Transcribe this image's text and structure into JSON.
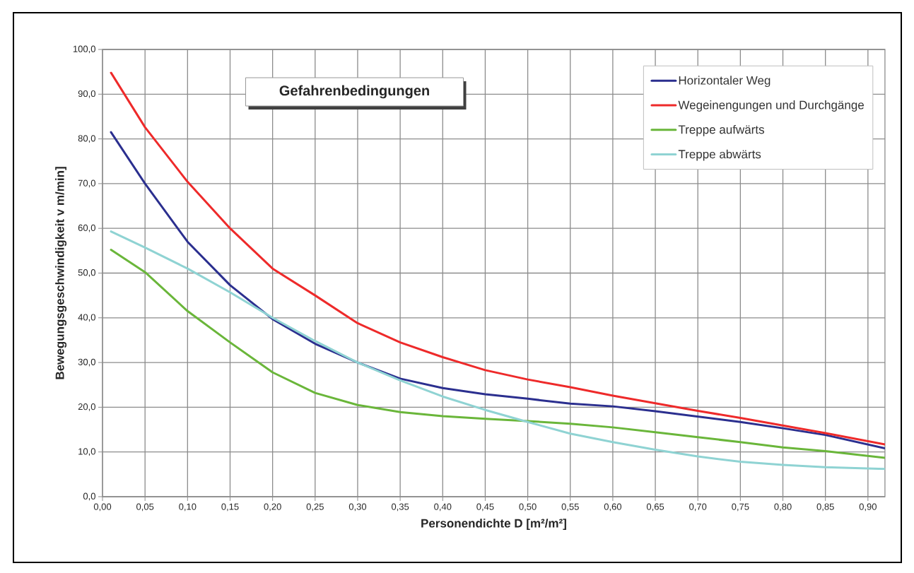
{
  "chart_data": {
    "type": "line",
    "title": "Gefahrenbedingungen",
    "xlabel": "Personendichte D [m²/m²]",
    "ylabel": "Bewegungsgeschwindigkeit v m/min]",
    "x": [
      0.01,
      0.05,
      0.1,
      0.15,
      0.2,
      0.25,
      0.3,
      0.35,
      0.4,
      0.45,
      0.5,
      0.55,
      0.6,
      0.65,
      0.7,
      0.75,
      0.8,
      0.85,
      0.92
    ],
    "series": [
      {
        "name": "Horizontaler Weg",
        "color": "#2b2f8f",
        "values": [
          81.5,
          70,
          57,
          47.3,
          39.7,
          34.2,
          30,
          26.4,
          24.3,
          22.9,
          21.9,
          20.8,
          20.2,
          19.1,
          17.9,
          16.7,
          15.3,
          13.8,
          10.8
        ]
      },
      {
        "name": "Wegeinengungen und Durchgänge",
        "color": "#ee2a2a",
        "values": [
          94.8,
          82.6,
          70.4,
          60,
          51,
          45,
          38.8,
          34.5,
          31.2,
          28.3,
          26.2,
          24.5,
          22.6,
          20.9,
          19.2,
          17.6,
          15.9,
          14.2,
          11.7
        ]
      },
      {
        "name": "Treppe aufwärts",
        "color": "#6ab63a",
        "values": [
          55.2,
          50.2,
          41.5,
          34.5,
          27.8,
          23.2,
          20.5,
          18.9,
          18.0,
          17.4,
          16.9,
          16.3,
          15.5,
          14.4,
          13.3,
          12.2,
          11.0,
          10.2,
          8.7
        ]
      },
      {
        "name": "Treppe abwärts",
        "color": "#8fd3d3",
        "values": [
          59.3,
          55.7,
          51,
          45.7,
          40,
          34.8,
          30,
          26,
          22.4,
          19.4,
          16.7,
          14.1,
          12.2,
          10.5,
          9.0,
          7.8,
          7.1,
          6.6,
          6.2
        ]
      }
    ],
    "xlim": [
      0,
      0.92
    ],
    "ylim": [
      0,
      100
    ],
    "xticks": [
      {
        "value": 0,
        "label": "0,00"
      },
      {
        "value": 0.05,
        "label": "0,05"
      },
      {
        "value": 0.1,
        "label": "0,10"
      },
      {
        "value": 0.15,
        "label": "0,15"
      },
      {
        "value": 0.2,
        "label": "0,20"
      },
      {
        "value": 0.25,
        "label": "0,25"
      },
      {
        "value": 0.3,
        "label": "0,30"
      },
      {
        "value": 0.35,
        "label": "0,35"
      },
      {
        "value": 0.4,
        "label": "0,40"
      },
      {
        "value": 0.45,
        "label": "0,45"
      },
      {
        "value": 0.5,
        "label": "0,50"
      },
      {
        "value": 0.55,
        "label": "0,55"
      },
      {
        "value": 0.6,
        "label": "0,60"
      },
      {
        "value": 0.65,
        "label": "0,65"
      },
      {
        "value": 0.7,
        "label": "0,70"
      },
      {
        "value": 0.75,
        "label": "0,75"
      },
      {
        "value": 0.8,
        "label": "0,80"
      },
      {
        "value": 0.85,
        "label": "0,85"
      },
      {
        "value": 0.9,
        "label": "0,90"
      }
    ],
    "yticks": [
      {
        "value": 0,
        "label": "0,0"
      },
      {
        "value": 10,
        "label": "10,0"
      },
      {
        "value": 20,
        "label": "20,0"
      },
      {
        "value": 30,
        "label": "30,0"
      },
      {
        "value": 40,
        "label": "40,0"
      },
      {
        "value": 50,
        "label": "50,0"
      },
      {
        "value": 60,
        "label": "60,0"
      },
      {
        "value": 70,
        "label": "70,0"
      },
      {
        "value": 80,
        "label": "80,0"
      },
      {
        "value": 90,
        "label": "90,0"
      },
      {
        "value": 100,
        "label": "100,0"
      }
    ],
    "grid": true,
    "legend": "top right",
    "marker": "none",
    "line_style": "solid"
  }
}
